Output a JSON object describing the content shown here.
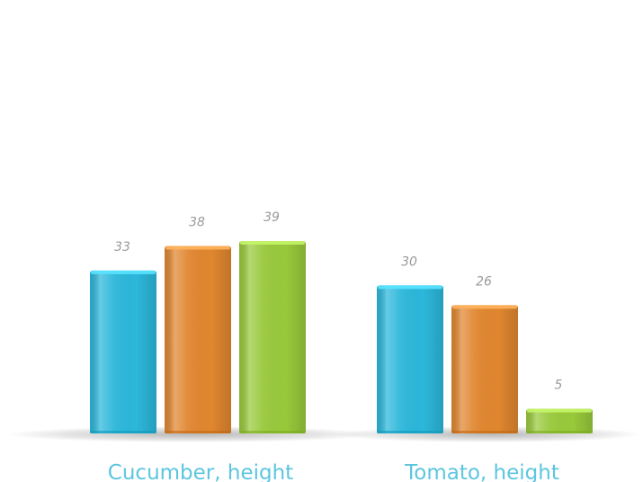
{
  "chart_data": {
    "type": "bar",
    "categories": [
      "Cucumber, height",
      "Tomato, height"
    ],
    "series": [
      {
        "values": [
          33,
          30
        ],
        "color": "#2cb7db"
      },
      {
        "values": [
          38,
          26
        ],
        "color": "#e0862f"
      },
      {
        "values": [
          39,
          5
        ],
        "color": "#98c93b"
      }
    ],
    "ylim": [
      0,
      39
    ],
    "grid": false,
    "legend": "none",
    "title": "",
    "xlabel": "",
    "ylabel": ""
  }
}
